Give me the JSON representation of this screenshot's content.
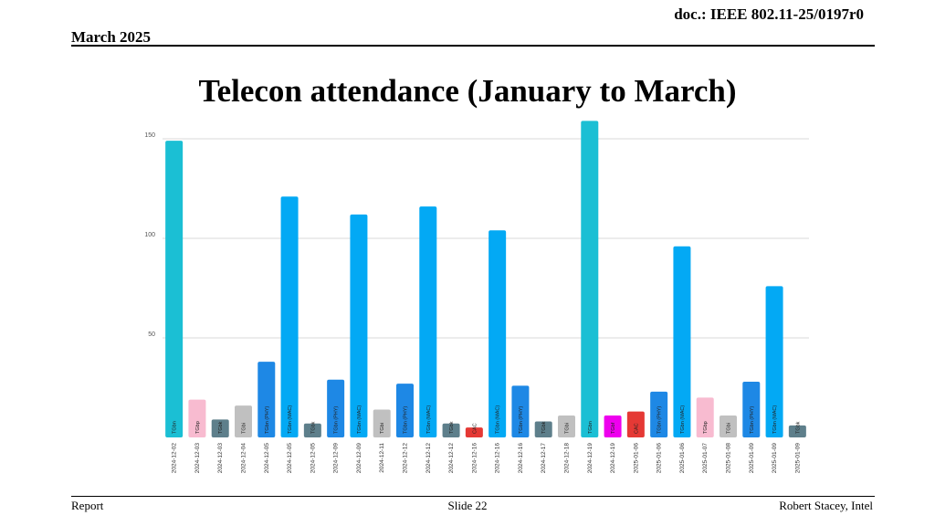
{
  "header": {
    "doc_id": "doc.: IEEE 802.11-25/0197r0",
    "date": "March 2025"
  },
  "title": "Telecon attendance (January to March)",
  "footer": {
    "left": "Report",
    "center": "Slide 22",
    "right": "Robert Stacey, Intel"
  },
  "chart_data": {
    "type": "bar",
    "title": "",
    "xlabel": "",
    "ylabel": "",
    "ylim": [
      0,
      160
    ],
    "yticks": [
      50,
      100,
      150
    ],
    "grid": true,
    "legend": "none",
    "categories": [
      "2024-12-02",
      "2024-12-03",
      "2024-12-03",
      "2024-12-04",
      "2024-12-05",
      "2024-12-05",
      "2024-12-05",
      "2024-12-09",
      "2024-12-09",
      "2024-12-11",
      "2024-12-12",
      "2024-12-12",
      "2024-12-12",
      "2024-12-16",
      "2024-12-16",
      "2024-12-16",
      "2024-12-17",
      "2024-12-18",
      "2024-12-19",
      "2024-12-19",
      "2025-01-06",
      "2025-01-06",
      "2025-01-06",
      "2025-01-07",
      "2025-01-08",
      "2025-01-09",
      "2025-01-09",
      "2025-01-09"
    ],
    "bar_labels": [
      "TGbn",
      "TGbp",
      "TGbk",
      "TGbi",
      "TGbn (PHY)",
      "TGbn (MAC)",
      "TGbk",
      "TGbn (PHY)",
      "TGbn (MAC)",
      "TGbi",
      "TGbn (PHY)",
      "TGbn (MAC)",
      "TGbk",
      "CAC",
      "TGbn (MAC)",
      "TGbn (PHY)",
      "TGbk",
      "TGbi",
      "TGbn",
      "TGbf",
      "CAC",
      "TGbn (PHY)",
      "TGbn (MAC)",
      "TGbp",
      "TGbi",
      "TGbn (PHY)",
      "TGbn (MAC)",
      "TGbk"
    ],
    "values": [
      149,
      19,
      9,
      16,
      38,
      121,
      7,
      29,
      112,
      14,
      27,
      116,
      7,
      5,
      104,
      26,
      8,
      11,
      159,
      11,
      13,
      23,
      96,
      20,
      11,
      28,
      76,
      6
    ],
    "colors": [
      "#1bbfd4",
      "#f8bbd0",
      "#5e7f8b",
      "#c0c0c0",
      "#1e88e5",
      "#03a9f4",
      "#5e7f8b",
      "#1e88e5",
      "#03a9f4",
      "#c0c0c0",
      "#1e88e5",
      "#03a9f4",
      "#5e7f8b",
      "#e53935",
      "#03a9f4",
      "#1e88e5",
      "#5e7f8b",
      "#c0c0c0",
      "#1bbfd4",
      "#ee00ee",
      "#e53935",
      "#1e88e5",
      "#03a9f4",
      "#f8bbd0",
      "#c0c0c0",
      "#1e88e5",
      "#03a9f4",
      "#5e7f8b"
    ]
  }
}
